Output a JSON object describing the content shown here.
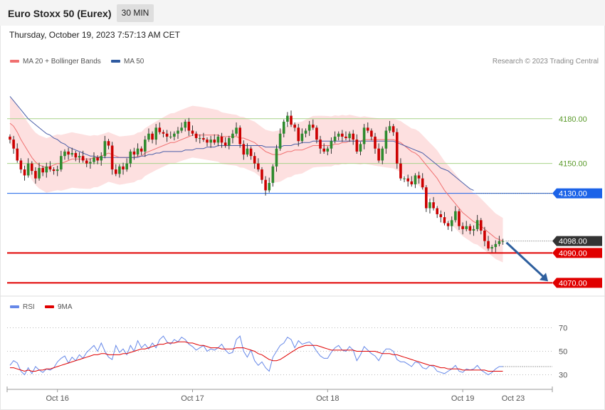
{
  "header": {
    "title": "Euro Stoxx 50 (Eurex)",
    "timeframe": "30 MIN",
    "datetime": "Thursday, October 19, 2023 7:57:13 AM CET"
  },
  "credit": "Research © 2023 Trading Central",
  "colors": {
    "bull": "#2e8b2e",
    "bear": "#cc0000",
    "ma20": "#f07070",
    "bollinger_fill": "#fde0e0",
    "ma50": "#4a5ea8",
    "support": "#e00000",
    "pivot": "#1c63e8",
    "resistance": "#a8d48a",
    "last": "#333333",
    "rsi": "#6688e8",
    "rsi_ma": "#e00000",
    "arrow": "#2e5f9e"
  },
  "chart_data": [
    {
      "type": "candlestick",
      "legend": [
        {
          "name": "MA 20 + Bollinger Bands",
          "color": "#f07070"
        },
        {
          "name": "MA 50",
          "color": "#4a5ea8"
        }
      ],
      "x_ticks": [
        "Oct 16",
        "Oct 17",
        "Oct 18",
        "Oct 19",
        "Oct 23"
      ],
      "ylim": [
        4063,
        4230
      ],
      "levels": [
        {
          "value": 4180.0,
          "label": "4180.00",
          "kind": "resistance"
        },
        {
          "value": 4150.0,
          "label": "4150.00",
          "kind": "resistance"
        },
        {
          "value": 4130.0,
          "label": "4130.00",
          "kind": "pivot"
        },
        {
          "value": 4098.0,
          "label": "4098.00",
          "kind": "last"
        },
        {
          "value": 4090.0,
          "label": "4090.00",
          "kind": "support"
        },
        {
          "value": 4070.0,
          "label": "4070.00",
          "kind": "support"
        }
      ],
      "close": [
        4166,
        4160,
        4152,
        4146,
        4142,
        4150,
        4145,
        4140,
        4147,
        4144,
        4148,
        4146,
        4145,
        4146,
        4155,
        4158,
        4156,
        4157,
        4154,
        4155,
        4152,
        4150,
        4151,
        4154,
        4152,
        4155,
        4165,
        4162,
        4146,
        4143,
        4148,
        4146,
        4150,
        4158,
        4156,
        4160,
        4158,
        4166,
        4170,
        4166,
        4174,
        4171,
        4170,
        4168,
        4168,
        4170,
        4172,
        4174,
        4178,
        4172,
        4170,
        4167,
        4167,
        4166,
        4164,
        4166,
        4164,
        4168,
        4164,
        4162,
        4167,
        4170,
        4174,
        4163,
        4156,
        4160,
        4155,
        4150,
        4146,
        4139,
        4132,
        4137,
        4148,
        4160,
        4170,
        4178,
        4182,
        4176,
        4174,
        4165,
        4170,
        4172,
        4176,
        4174,
        4166,
        4160,
        4158,
        4160,
        4165,
        4168,
        4170,
        4168,
        4167,
        4170,
        4166,
        4158,
        4163,
        4174,
        4172,
        4168,
        4160,
        4152,
        4160,
        4172,
        4175,
        4171,
        4150,
        4140,
        4140,
        4138,
        4136,
        4142,
        4140,
        4134,
        4120,
        4124,
        4120,
        4116,
        4114,
        4110,
        4108,
        4112,
        4118,
        4108,
        4106,
        4108,
        4105,
        4106,
        4112,
        4105,
        4098,
        4093,
        4094,
        4096,
        4098,
        4098
      ],
      "ma20": [
        4177,
        4175,
        4171,
        4166,
        4162,
        4158,
        4154,
        4151,
        4149,
        4148,
        4147,
        4148,
        4149,
        4150,
        4150,
        4151,
        4152,
        4153,
        4153,
        4153,
        4153,
        4153,
        4153,
        4154,
        4154,
        4155,
        4156,
        4157,
        4156,
        4155,
        4154,
        4154,
        4154,
        4154,
        4154,
        4155,
        4155,
        4157,
        4158,
        4159,
        4160,
        4161,
        4162,
        4163,
        4164,
        4164,
        4165,
        4166,
        4167,
        4168,
        4169,
        4169,
        4169,
        4169,
        4169,
        4169,
        4169,
        4169,
        4168,
        4168,
        4168,
        4168,
        4168,
        4167,
        4167,
        4166,
        4165,
        4164,
        4162,
        4160,
        4158,
        4157,
        4156,
        4156,
        4156,
        4157,
        4158,
        4158,
        4159,
        4159,
        4159,
        4160,
        4161,
        4162,
        4162,
        4162,
        4162,
        4162,
        4162,
        4163,
        4163,
        4164,
        4164,
        4165,
        4165,
        4165,
        4165,
        4166,
        4166,
        4166,
        4166,
        4166,
        4166,
        4166,
        4166,
        4166,
        4165,
        4164,
        4162,
        4160,
        4158,
        4157,
        4155,
        4152,
        4149,
        4146,
        4143,
        4140,
        4136,
        4132,
        4129,
        4126,
        4123,
        4120,
        4117,
        4115,
        4113,
        4111,
        4110,
        4108,
        4106,
        4104,
        4102,
        4100,
        4099,
        4098
      ],
      "ma50": [
        4195,
        4192,
        4189,
        4186,
        4183,
        4180,
        4178,
        4176,
        4174,
        4172,
        4170,
        4169,
        4167,
        4166,
        4164,
        4163,
        4161,
        4160,
        4159,
        4158,
        4157,
        4156,
        4155,
        4155,
        4154,
        4154,
        4154,
        4154,
        4154,
        4154,
        4154,
        4154,
        4154,
        4154,
        4154,
        4154,
        4155,
        4155,
        4156,
        4156,
        4157,
        4157,
        4158,
        4158,
        4158,
        4158,
        4158,
        4158,
        4159,
        4159,
        4159,
        4160,
        4160,
        4160,
        4161,
        4161,
        4161,
        4162,
        4162,
        4162,
        4162,
        4162,
        4162,
        4162,
        4162,
        4162,
        4162,
        4162,
        4162,
        4162,
        4161,
        4161,
        4161,
        4161,
        4161,
        4162,
        4162,
        4162,
        4163,
        4163,
        4164,
        4164,
        4164,
        4165,
        4165,
        4165,
        4165,
        4165,
        4165,
        4165,
        4165,
        4165,
        4165,
        4165,
        4165,
        4165,
        4165,
        4165,
        4165,
        4165,
        4165,
        4165,
        4165,
        4165,
        4165,
        4165,
        4164,
        4163,
        4162,
        4161,
        4160,
        4159,
        4158,
        4157,
        4155,
        4153,
        4151,
        4149,
        4147,
        4146,
        4145,
        4143,
        4141,
        4139,
        4137,
        4135,
        4133,
        4132
      ],
      "bb_band_width": 17
    },
    {
      "type": "line",
      "legend": [
        {
          "name": "RSI",
          "color": "#6688e8"
        },
        {
          "name": "9MA",
          "color": "#e00000"
        }
      ],
      "ylim": [
        20,
        80
      ],
      "y_ticks": [
        70,
        50,
        30
      ],
      "series": [
        {
          "name": "RSI",
          "values": [
            38,
            42,
            40,
            33,
            30,
            36,
            31,
            37,
            34,
            32,
            35,
            34,
            36,
            41,
            44,
            46,
            40,
            45,
            42,
            47,
            44,
            49,
            52,
            55,
            50,
            57,
            50,
            45,
            43,
            55,
            49,
            52,
            47,
            55,
            50,
            59,
            53,
            56,
            52,
            57,
            53,
            60,
            63,
            58,
            56,
            60,
            58,
            62,
            60,
            56,
            54,
            51,
            53,
            55,
            50,
            52,
            51,
            53,
            56,
            51,
            48,
            49,
            60,
            63,
            50,
            45,
            51,
            42,
            38,
            41,
            36,
            33,
            45,
            50,
            55,
            57,
            62,
            60,
            53,
            59,
            56,
            57,
            58,
            55,
            50,
            46,
            44,
            44,
            49,
            53,
            55,
            51,
            50,
            54,
            51,
            42,
            47,
            54,
            51,
            48,
            46,
            42,
            48,
            52,
            52,
            50,
            43,
            41,
            41,
            39,
            37,
            41,
            40,
            36,
            35,
            38,
            37,
            33,
            32,
            31,
            33,
            35,
            38,
            33,
            32,
            35,
            34,
            35,
            38,
            34,
            32,
            30,
            32,
            35,
            37,
            37
          ]
        },
        {
          "name": "9MA",
          "values": [
            36,
            36,
            35,
            34,
            33,
            34,
            33,
            33,
            34,
            34,
            35,
            35,
            36,
            37,
            38,
            39,
            40,
            41,
            42,
            43,
            44,
            45,
            46,
            47,
            47,
            48,
            48,
            47,
            47,
            47,
            47,
            48,
            48,
            49,
            50,
            51,
            52,
            52,
            53,
            54,
            55,
            56,
            56,
            57,
            57,
            57,
            58,
            58,
            58,
            57,
            57,
            56,
            55,
            55,
            54,
            53,
            53,
            53,
            52,
            52,
            52,
            52,
            53,
            53,
            53,
            52,
            51,
            50,
            48,
            47,
            45,
            43,
            42,
            42,
            43,
            45,
            47,
            49,
            51,
            53,
            54,
            55,
            55,
            55,
            55,
            54,
            53,
            52,
            51,
            51,
            51,
            51,
            51,
            51,
            51,
            50,
            50,
            50,
            50,
            50,
            50,
            49,
            48,
            48,
            48,
            47,
            47,
            46,
            45,
            44,
            43,
            42,
            41,
            40,
            39,
            38,
            38,
            37,
            36,
            36,
            35,
            35,
            35,
            35,
            34,
            34,
            34,
            34,
            34,
            34,
            34,
            33,
            33,
            33,
            33,
            33
          ]
        }
      ]
    }
  ]
}
